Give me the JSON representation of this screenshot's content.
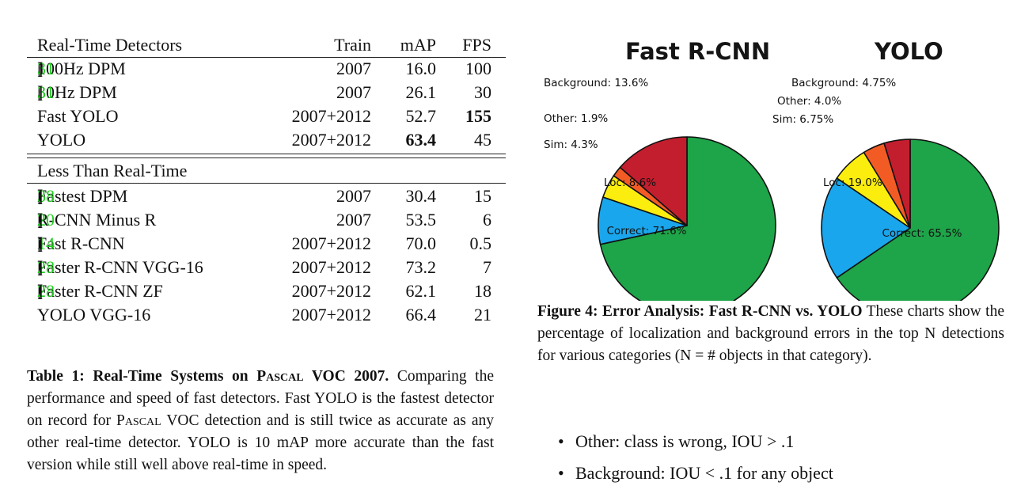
{
  "table": {
    "header": {
      "name": "Real-Time Detectors",
      "train": "Train",
      "map": "mAP",
      "fps": "FPS"
    },
    "realtime_rows": [
      {
        "name": "100Hz DPM ",
        "ref": "31",
        "train": "2007",
        "map": "16.0",
        "fps": "100"
      },
      {
        "name": "30Hz DPM ",
        "ref": "31",
        "train": "2007",
        "map": "26.1",
        "fps": "30"
      },
      {
        "name": "Fast YOLO",
        "ref": "",
        "train": "2007+2012",
        "map": "52.7",
        "fps": "155"
      },
      {
        "name": "YOLO",
        "ref": "",
        "train": "2007+2012",
        "map": "63.4",
        "fps": "45"
      }
    ],
    "section2_title": "Less Than Real-Time",
    "slow_rows": [
      {
        "name": "Fastest DPM ",
        "ref": "38",
        "train": "2007",
        "map": "30.4",
        "fps": "15"
      },
      {
        "name": "R-CNN Minus R ",
        "ref": "20",
        "train": "2007",
        "map": "53.5",
        "fps": "6"
      },
      {
        "name": "Fast R-CNN ",
        "ref": "14",
        "train": "2007+2012",
        "map": "70.0",
        "fps": "0.5"
      },
      {
        "name": "Faster R-CNN VGG-16",
        "ref": "28",
        "train": "2007+2012",
        "map": "73.2",
        "fps": "7"
      },
      {
        "name": "Faster R-CNN ZF ",
        "ref": "28",
        "train": "2007+2012",
        "map": "62.1",
        "fps": "18"
      },
      {
        "name": "YOLO VGG-16",
        "ref": "",
        "train": "2007+2012",
        "map": "66.4",
        "fps": "21"
      }
    ]
  },
  "table_caption": {
    "label": "Table 1:",
    "title_pre": "Real-Time Systems on ",
    "title_sc": "Pascal",
    "title_post": " VOC 2007.",
    "body_1": " Comparing the performance and speed of fast detectors. Fast YOLO is the fastest detector on record for ",
    "body_sc": "Pascal",
    "body_2": " VOC detection and is still twice as accurate as any other real-time detector. YOLO is 10 mAP more accurate than the fast version while still well above real-time in speed."
  },
  "chart_data": [
    {
      "type": "pie",
      "title": "Fast R-CNN",
      "categories": [
        "Correct",
        "Loc",
        "Sim",
        "Other",
        "Background"
      ],
      "values": [
        71.6,
        8.6,
        4.3,
        1.9,
        13.6
      ],
      "labels": [
        "Correct: 71.6%",
        "Loc: 8.6%",
        "Sim: 4.3%",
        "Other: 1.9%",
        "Background: 13.6%"
      ],
      "colors": [
        "#1ea449",
        "#1aa6ec",
        "#fbee0e",
        "#f25c24",
        "#c31e2e"
      ]
    },
    {
      "type": "pie",
      "title": "YOLO",
      "categories": [
        "Correct",
        "Loc",
        "Sim",
        "Other",
        "Background"
      ],
      "values": [
        65.5,
        19.0,
        6.75,
        4.0,
        4.75
      ],
      "labels": [
        "Correct: 65.5%",
        "Loc: 19.0%",
        "Sim: 6.75%",
        "Other: 4.0%",
        "Background: 4.75%"
      ],
      "colors": [
        "#1ea449",
        "#1aa6ec",
        "#fbee0e",
        "#f25c24",
        "#c31e2e"
      ]
    }
  ],
  "figure_caption": {
    "label": "Figure 4:",
    "title": " Error Analysis: Fast R-CNN vs. YOLO",
    "body": " These charts show the percentage of localization and background errors in the top N detections for various categories (N = # objects in that category)."
  },
  "bullets": [
    {
      "symbol": "•",
      "text": "Other: class is wrong, IOU > .1"
    },
    {
      "symbol": "•",
      "text": "Background: IOU < .1 for any object"
    }
  ]
}
